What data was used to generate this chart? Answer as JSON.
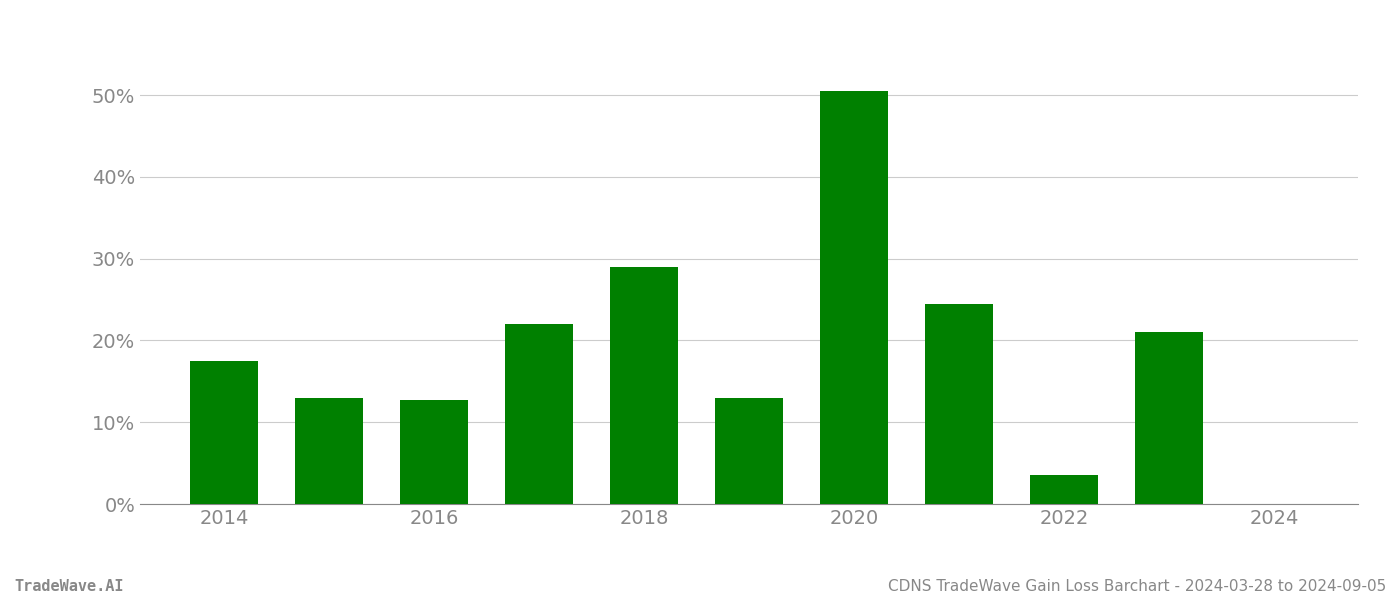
{
  "years": [
    2014,
    2015,
    2016,
    2017,
    2018,
    2019,
    2020,
    2021,
    2022,
    2023
  ],
  "values": [
    0.175,
    0.13,
    0.127,
    0.22,
    0.29,
    0.13,
    0.505,
    0.245,
    0.035,
    0.21
  ],
  "bar_color": "#008000",
  "background_color": "#ffffff",
  "title": "CDNS TradeWave Gain Loss Barchart - 2024-03-28 to 2024-09-05",
  "footer_left": "TradeWave.AI",
  "xlim": [
    2013.2,
    2024.8
  ],
  "ylim": [
    0,
    0.565
  ],
  "yticks": [
    0,
    0.1,
    0.2,
    0.3,
    0.4,
    0.5
  ],
  "xticks": [
    2014,
    2016,
    2018,
    2020,
    2022,
    2024
  ],
  "grid_color": "#cccccc",
  "tick_color": "#888888",
  "title_fontsize": 11,
  "footer_fontsize": 11,
  "axis_fontsize": 14,
  "bar_width": 0.65
}
